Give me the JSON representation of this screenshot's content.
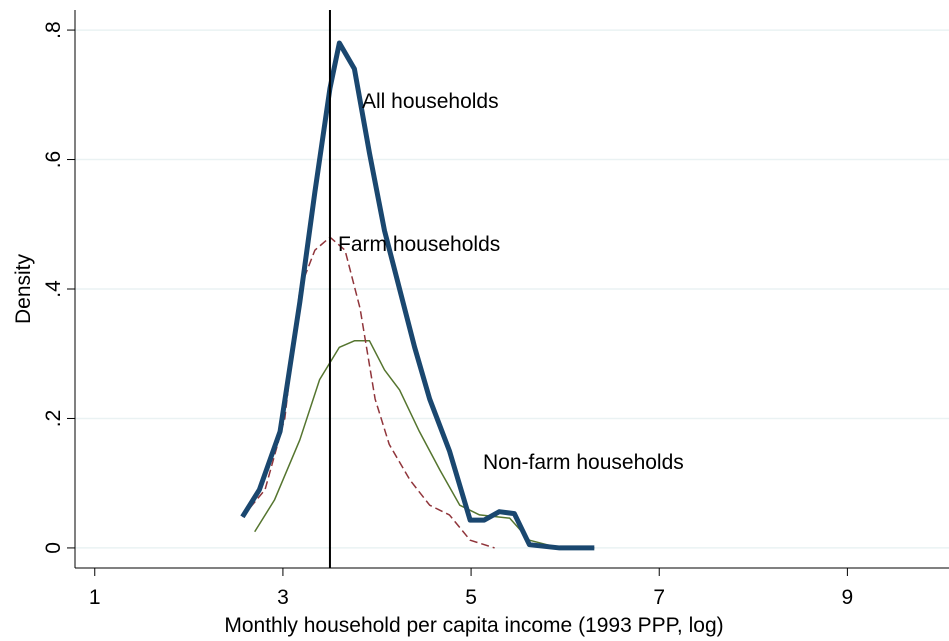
{
  "chart_data": {
    "type": "line",
    "xlabel": "Monthly household per capita income (1993 PPP, log)",
    "ylabel": "Density",
    "xlim": [
      0.79,
      10.08
    ],
    "ylim": [
      -0.031,
      0.831
    ],
    "xticks": [
      1,
      3,
      5,
      7,
      9
    ],
    "yticks": [
      {
        "value": 0,
        "label": "0"
      },
      {
        "value": 0.2,
        "label": ".2"
      },
      {
        "value": 0.4,
        "label": ".4"
      },
      {
        "value": 0.6,
        "label": ".6"
      },
      {
        "value": 0.8,
        "label": ".8"
      }
    ],
    "grid": true,
    "vline": 3.5,
    "annotations": [
      "All households",
      "Farm households",
      "Non-farm households"
    ],
    "series": [
      {
        "name": "All households",
        "color": "#1a476f",
        "width": 5,
        "dash": false,
        "x": [
          2.57,
          2.75,
          2.97,
          3.18,
          3.34,
          3.5,
          3.6,
          3.76,
          3.92,
          4.08,
          4.24,
          4.4,
          4.56,
          4.77,
          4.99,
          5.14,
          5.3,
          5.46,
          5.62,
          5.94,
          6.31
        ],
        "values": [
          0.048,
          0.09,
          0.18,
          0.38,
          0.55,
          0.71,
          0.78,
          0.74,
          0.61,
          0.49,
          0.4,
          0.31,
          0.23,
          0.15,
          0.043,
          0.043,
          0.056,
          0.053,
          0.005,
          0,
          0
        ]
      },
      {
        "name": "Farm households",
        "color": "#90353b",
        "width": 1.5,
        "dash": true,
        "x": [
          2.57,
          2.81,
          3.02,
          3.18,
          3.34,
          3.5,
          3.66,
          3.82,
          3.98,
          4.13,
          4.35,
          4.56,
          4.77,
          4.99,
          5.25
        ],
        "values": [
          0.048,
          0.09,
          0.2,
          0.4,
          0.46,
          0.48,
          0.46,
          0.37,
          0.23,
          0.16,
          0.105,
          0.066,
          0.051,
          0.012,
          0
        ]
      },
      {
        "name": "Non-farm households",
        "color": "#55752f",
        "width": 1.5,
        "dash": false,
        "x": [
          2.7,
          2.91,
          3.18,
          3.39,
          3.6,
          3.76,
          3.92,
          4.08,
          4.24,
          4.45,
          4.67,
          4.88,
          5.09,
          5.41,
          5.62,
          5.94,
          6.31
        ],
        "values": [
          0.025,
          0.074,
          0.167,
          0.26,
          0.31,
          0.32,
          0.32,
          0.275,
          0.244,
          0.18,
          0.12,
          0.066,
          0.051,
          0.046,
          0.012,
          0,
          0
        ]
      }
    ]
  }
}
